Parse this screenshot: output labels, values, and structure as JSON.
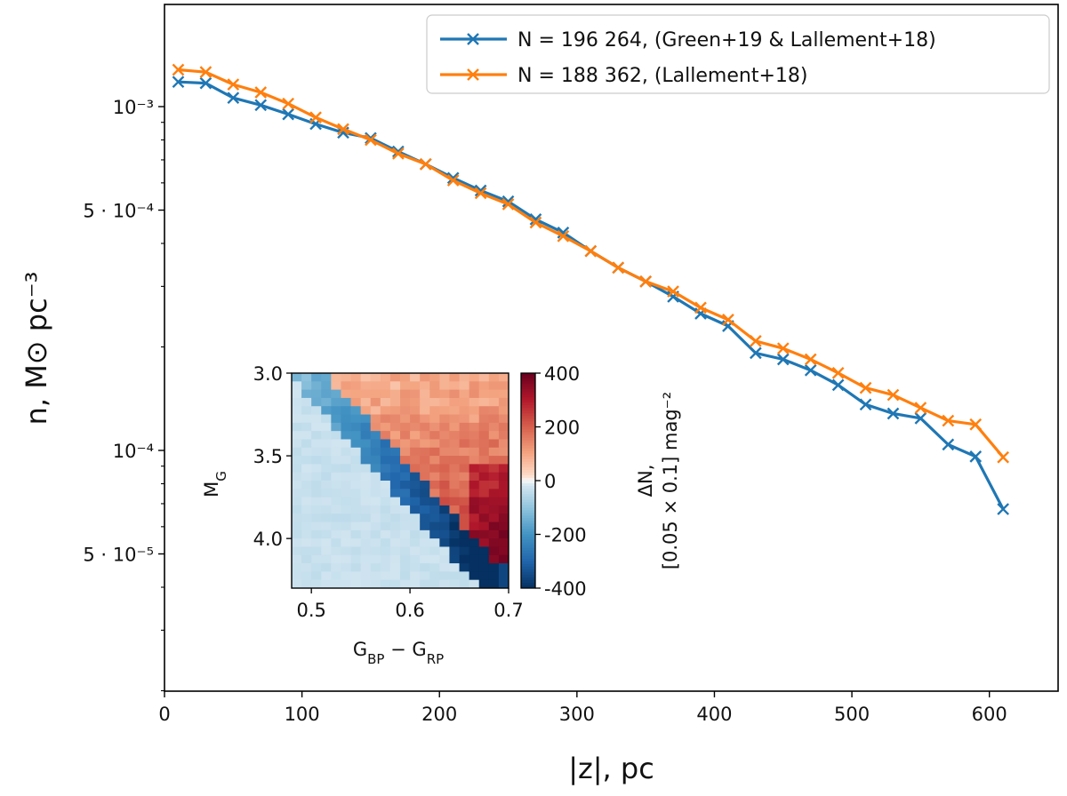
{
  "chart_data": [
    {
      "type": "line",
      "yscale": "log",
      "xlabel": "|z|,  pc",
      "ylabel": "n,  M⊙  pc⁻³",
      "xlim": [
        0,
        650
      ],
      "ylim": [
        2e-05,
        0.002
      ],
      "x_ticks": [
        0,
        100,
        200,
        300,
        400,
        500,
        600
      ],
      "y_major_ticks": [
        {
          "value": 0.001,
          "label": "10⁻³"
        },
        {
          "value": 0.0005,
          "label": "5 · 10⁻⁴"
        },
        {
          "value": 0.0001,
          "label": "10⁻⁴"
        },
        {
          "value": 5e-05,
          "label": "5 · 10⁻⁵"
        }
      ],
      "legend_position": "upper-right",
      "series": [
        {
          "name": "N = 196 264,  (Green+19 & Lallement+18)",
          "color": "#1f77b4",
          "marker": "x",
          "x": [
            10,
            30,
            50,
            70,
            90,
            110,
            130,
            150,
            170,
            190,
            210,
            230,
            250,
            270,
            290,
            310,
            330,
            350,
            370,
            390,
            410,
            430,
            450,
            470,
            490,
            510,
            530,
            550,
            570,
            590,
            610
          ],
          "values": [
            0.00118,
            0.00117,
            0.00106,
            0.00101,
            0.00095,
            0.00089,
            0.00084,
            0.00081,
            0.00074,
            0.00068,
            0.00062,
            0.00057,
            0.00053,
            0.00047,
            0.00043,
            0.00038,
            0.00034,
            0.00031,
            0.00028,
            0.00025,
            0.00023,
            0.000192,
            0.000184,
            0.000171,
            0.000155,
            0.000136,
            0.000128,
            0.000124,
            0.000104,
            9.6e-05,
            6.75e-05
          ]
        },
        {
          "name": "N = 188 362,  (Lallement+18)",
          "color": "#ff7f0e",
          "marker": "x",
          "x": [
            10,
            30,
            50,
            70,
            90,
            110,
            130,
            150,
            170,
            190,
            210,
            230,
            250,
            270,
            290,
            310,
            330,
            350,
            370,
            390,
            410,
            430,
            450,
            470,
            490,
            510,
            530,
            550,
            570,
            590,
            610
          ],
          "values": [
            0.00128,
            0.00126,
            0.00116,
            0.0011,
            0.00102,
            0.00093,
            0.00086,
            0.0008,
            0.00073,
            0.00068,
            0.00061,
            0.00056,
            0.00052,
            0.00046,
            0.00042,
            0.00038,
            0.00034,
            0.00031,
            0.00029,
            0.00026,
            0.00024,
            0.000208,
            0.000198,
            0.000184,
            0.000168,
            0.000152,
            0.000145,
            0.000133,
            0.000122,
            0.000119,
            9.55e-05
          ]
        }
      ]
    },
    {
      "type": "heatmap",
      "xlabel": "G_BP − G_RP",
      "ylabel": "M_G",
      "xlim": [
        0.48,
        0.7
      ],
      "ylim": [
        3.0,
        4.3
      ],
      "x_tick_values": [
        0.5,
        0.6,
        0.7
      ],
      "x_tick_labels": [
        "0.5",
        "0.6",
        "0.7"
      ],
      "y_tick_values": [
        3.0,
        3.5,
        4.0
      ],
      "y_tick_labels": [
        "3.0",
        "3.5",
        "4.0"
      ],
      "bin_width_x": 0.01,
      "bin_width_y": 0.05,
      "description_of_values": "positive above diagonal ridge, strong negative band along ridge",
      "colorbar": {
        "label_line1": "ΔN,",
        "label_line2": "[0.05 × 0.1] mag⁻²",
        "range": [
          -400,
          400
        ],
        "tick_values": [
          400,
          200,
          0,
          -200,
          -400
        ],
        "tick_labels": [
          "400",
          "200",
          "0",
          "-200",
          "-400"
        ],
        "colormap": "RdBu_r"
      }
    }
  ]
}
